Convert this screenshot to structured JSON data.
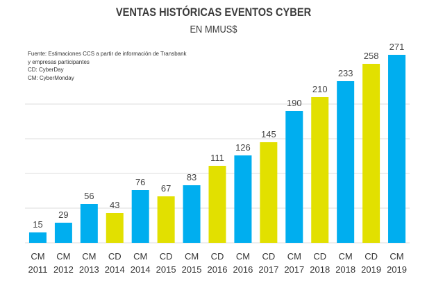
{
  "chart_data": {
    "type": "bar",
    "title": "VENTAS HISTÓRICAS EVENTOS CYBER",
    "subtitle": "EN MMUS$",
    "notes": [
      "Fuente: Estimaciones CCS a partir de información de Transbank",
      "y empresas participantes",
      "CD: CyberDay",
      "CM: CyberMonday"
    ],
    "categories": [
      [
        "CM",
        "2011"
      ],
      [
        "CM",
        "2012"
      ],
      [
        "CM",
        "2013"
      ],
      [
        "CD",
        "2014"
      ],
      [
        "CM",
        "2014"
      ],
      [
        "CD",
        "2015"
      ],
      [
        "CM",
        "2015"
      ],
      [
        "CD",
        "2016"
      ],
      [
        "CM",
        "2016"
      ],
      [
        "CD",
        "2017"
      ],
      [
        "CM",
        "2017"
      ],
      [
        "CD",
        "2018"
      ],
      [
        "CM",
        "2018"
      ],
      [
        "CD",
        "2019"
      ],
      [
        "CM",
        "2019"
      ]
    ],
    "values": [
      15,
      29,
      56,
      43,
      76,
      67,
      83,
      111,
      126,
      145,
      190,
      210,
      233,
      258,
      271
    ],
    "event_type": [
      "CM",
      "CM",
      "CM",
      "CD",
      "CM",
      "CD",
      "CM",
      "CD",
      "CM",
      "CD",
      "CM",
      "CD",
      "CM",
      "CD",
      "CM"
    ],
    "colors": {
      "CM": "#00aeef",
      "CD": "#e2e000",
      "grid": "#dcdcdc"
    },
    "ylim": [
      0,
      300
    ],
    "grid": true,
    "gridline_step": 50
  }
}
